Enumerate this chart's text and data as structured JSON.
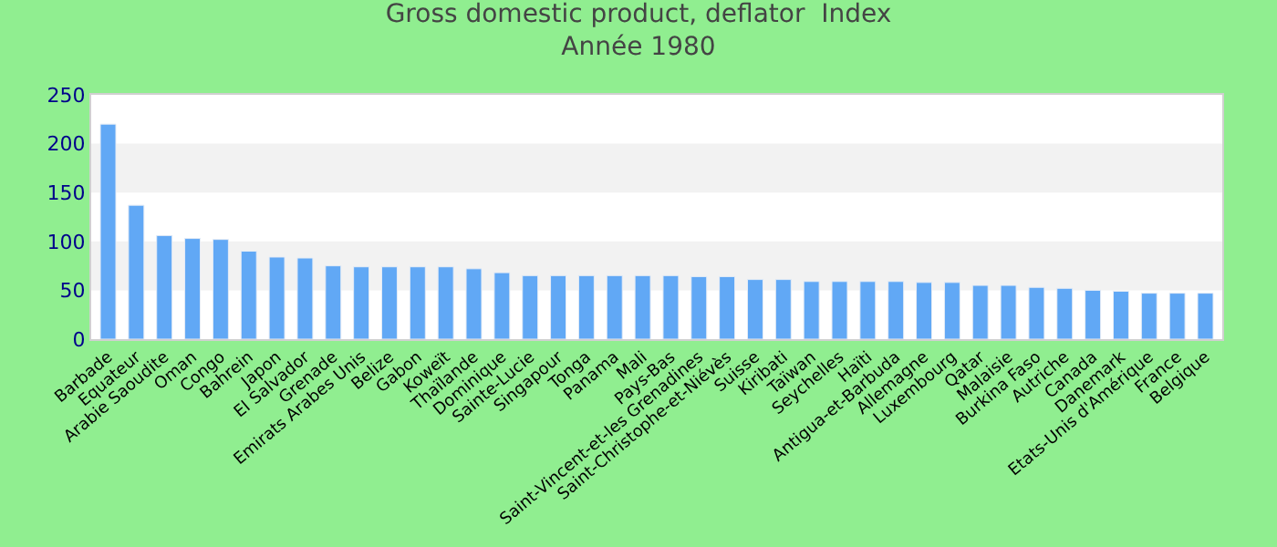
{
  "chart_data": {
    "type": "bar",
    "title": "Gross domestic product, deflator  Index",
    "subtitle": "Année 1980",
    "categories": [
      "Barbade",
      "Equateur",
      "Arabie Saoudite",
      "Oman",
      "Congo",
      "Bahrein",
      "Japon",
      "El Salvador",
      "Grenade",
      "Emirats Arabes Unis",
      "Belize",
      "Gabon",
      "Koweït",
      "Thaïlande",
      "Dominique",
      "Sainte-Lucie",
      "Singapour",
      "Tonga",
      "Panama",
      "Mali",
      "Pays-Bas",
      "Saint-Vincent-et-les Grenadines",
      "Saint-Christophe-et-Niévès",
      "Suisse",
      "Kiribati",
      "Taïwan",
      "Seychelles",
      "Haïti",
      "Antigua-et-Barbuda",
      "Allemagne",
      "Luxembourg",
      "Qatar",
      "Malaisie",
      "Burkina Faso",
      "Autriche",
      "Canada",
      "Danemark",
      "Etats-Unis d'Amérique",
      "France",
      "Belgique"
    ],
    "values": [
      220,
      137,
      106,
      103,
      102,
      90,
      84,
      83,
      75,
      74,
      74,
      74,
      74,
      72,
      68,
      65,
      65,
      65,
      65,
      65,
      65,
      64,
      64,
      61,
      61,
      59,
      59,
      59,
      59,
      58,
      58,
      55,
      55,
      53,
      52,
      50,
      49,
      47,
      47,
      47
    ],
    "color": "#61a8f5",
    "ylim": [
      0,
      250
    ],
    "yticks": [
      0,
      50,
      100,
      150,
      200,
      250
    ],
    "bands": [
      {
        "axis": "y",
        "from": 50,
        "to": 100,
        "color": "#f2f2f2"
      },
      {
        "axis": "y",
        "from": 150,
        "to": 200,
        "color": "#f2f2f2"
      }
    ]
  }
}
